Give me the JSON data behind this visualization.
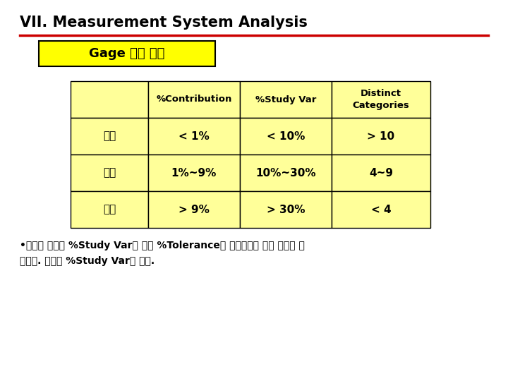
{
  "title": "VII. Measurement System Analysis",
  "subtitle": "Gage 평가 기준",
  "table_headers": [
    "",
    "%Contribution",
    "%Study Var",
    "Distinct\nCategories"
  ],
  "table_rows": [
    [
      "우수",
      "< 1%",
      "< 10%",
      "> 10"
    ],
    [
      "양호",
      "1%~9%",
      "10%~30%",
      "4~9"
    ],
    [
      "부족",
      "> 9%",
      "> 30%",
      "< 4"
    ]
  ],
  "note_line1": "•최근의 추세는 %Study Var와 함께 %Tolerance를 측정시스템 평가 지표로 사",
  "note_line2": "용한다. 기준은 %Study Var과 같다.",
  "bg_color": "#ffffff",
  "title_color": "#000000",
  "line_color": "#cc0000",
  "table_cell_color": "#ffff99",
  "table_border_color": "#000000",
  "subtitle_bg": "#ffff00",
  "subtitle_border": "#000000"
}
